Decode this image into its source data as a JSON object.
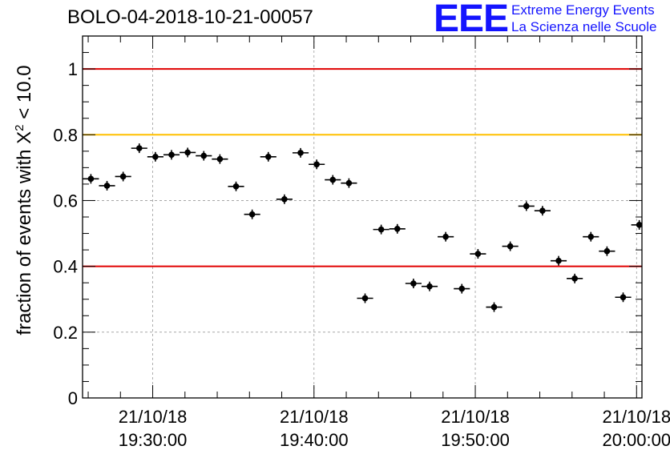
{
  "header": {
    "title": "BOLO-04-2018-10-21-00057",
    "logo_text": "EEE",
    "logo_line1": "Extreme Energy Events",
    "logo_line2": "La Scienza nelle Scuole"
  },
  "colors": {
    "logo": "#1414ff",
    "red_line": "#e00000",
    "yellow_line": "#ffc000",
    "markers": "#000000",
    "grid": "#9a9a9a"
  },
  "chart_data": {
    "type": "scatter",
    "title": "BOLO-04-2018-10-21-00057",
    "ylabel": "fraction of events with χ² < 10.0",
    "ylabel_main": "fraction of events with X",
    "ylabel_sup": "2",
    "ylabel_tail": " < 10.0",
    "xlim": [
      "19:25:39",
      "20:00:20"
    ],
    "ylim": [
      0,
      1.1
    ],
    "yticks": [
      0,
      0.2,
      0.4,
      0.6,
      0.8,
      1
    ],
    "ytick_labels": [
      "0",
      "0.2",
      "0.4",
      "0.6",
      "0.8",
      "1"
    ],
    "xticks": [
      "19:30:00",
      "19:40:00",
      "19:50:00",
      "20:00:00"
    ],
    "xtick_labels": [
      {
        "date": "21/10/18",
        "time": "19:30:00"
      },
      {
        "date": "21/10/18",
        "time": "19:40:00"
      },
      {
        "date": "21/10/18",
        "time": "19:50:00"
      },
      {
        "date": "21/10/18",
        "time": "20:00:00"
      }
    ],
    "grid": true,
    "reference_lines": [
      {
        "y": 1.0,
        "color": "#e00000"
      },
      {
        "y": 0.8,
        "color": "#ffc000"
      },
      {
        "y": 0.4,
        "color": "#e00000"
      }
    ],
    "bin_width_seconds": 60,
    "x": [
      "19:26:10",
      "19:27:10",
      "19:28:10",
      "19:29:10",
      "19:30:10",
      "19:31:10",
      "19:32:10",
      "19:33:10",
      "19:34:10",
      "19:35:10",
      "19:36:10",
      "19:37:10",
      "19:38:10",
      "19:39:10",
      "19:40:10",
      "19:41:10",
      "19:42:10",
      "19:43:10",
      "19:44:10",
      "19:45:10",
      "19:46:10",
      "19:47:10",
      "19:48:10",
      "19:49:10",
      "19:50:10",
      "19:51:10",
      "19:52:10",
      "19:53:10",
      "19:54:10",
      "19:55:10",
      "19:56:10",
      "19:57:10",
      "19:58:10",
      "19:59:10",
      "20:00:10"
    ],
    "values": [
      0.666,
      0.645,
      0.673,
      0.759,
      0.733,
      0.739,
      0.746,
      0.736,
      0.726,
      0.643,
      0.558,
      0.733,
      0.604,
      0.745,
      0.71,
      0.663,
      0.653,
      0.303,
      0.512,
      0.514,
      0.348,
      0.339,
      0.49,
      0.332,
      0.438,
      0.276,
      0.461,
      0.583,
      0.569,
      0.417,
      0.363,
      0.49,
      0.446,
      0.306,
      0.526
    ]
  }
}
